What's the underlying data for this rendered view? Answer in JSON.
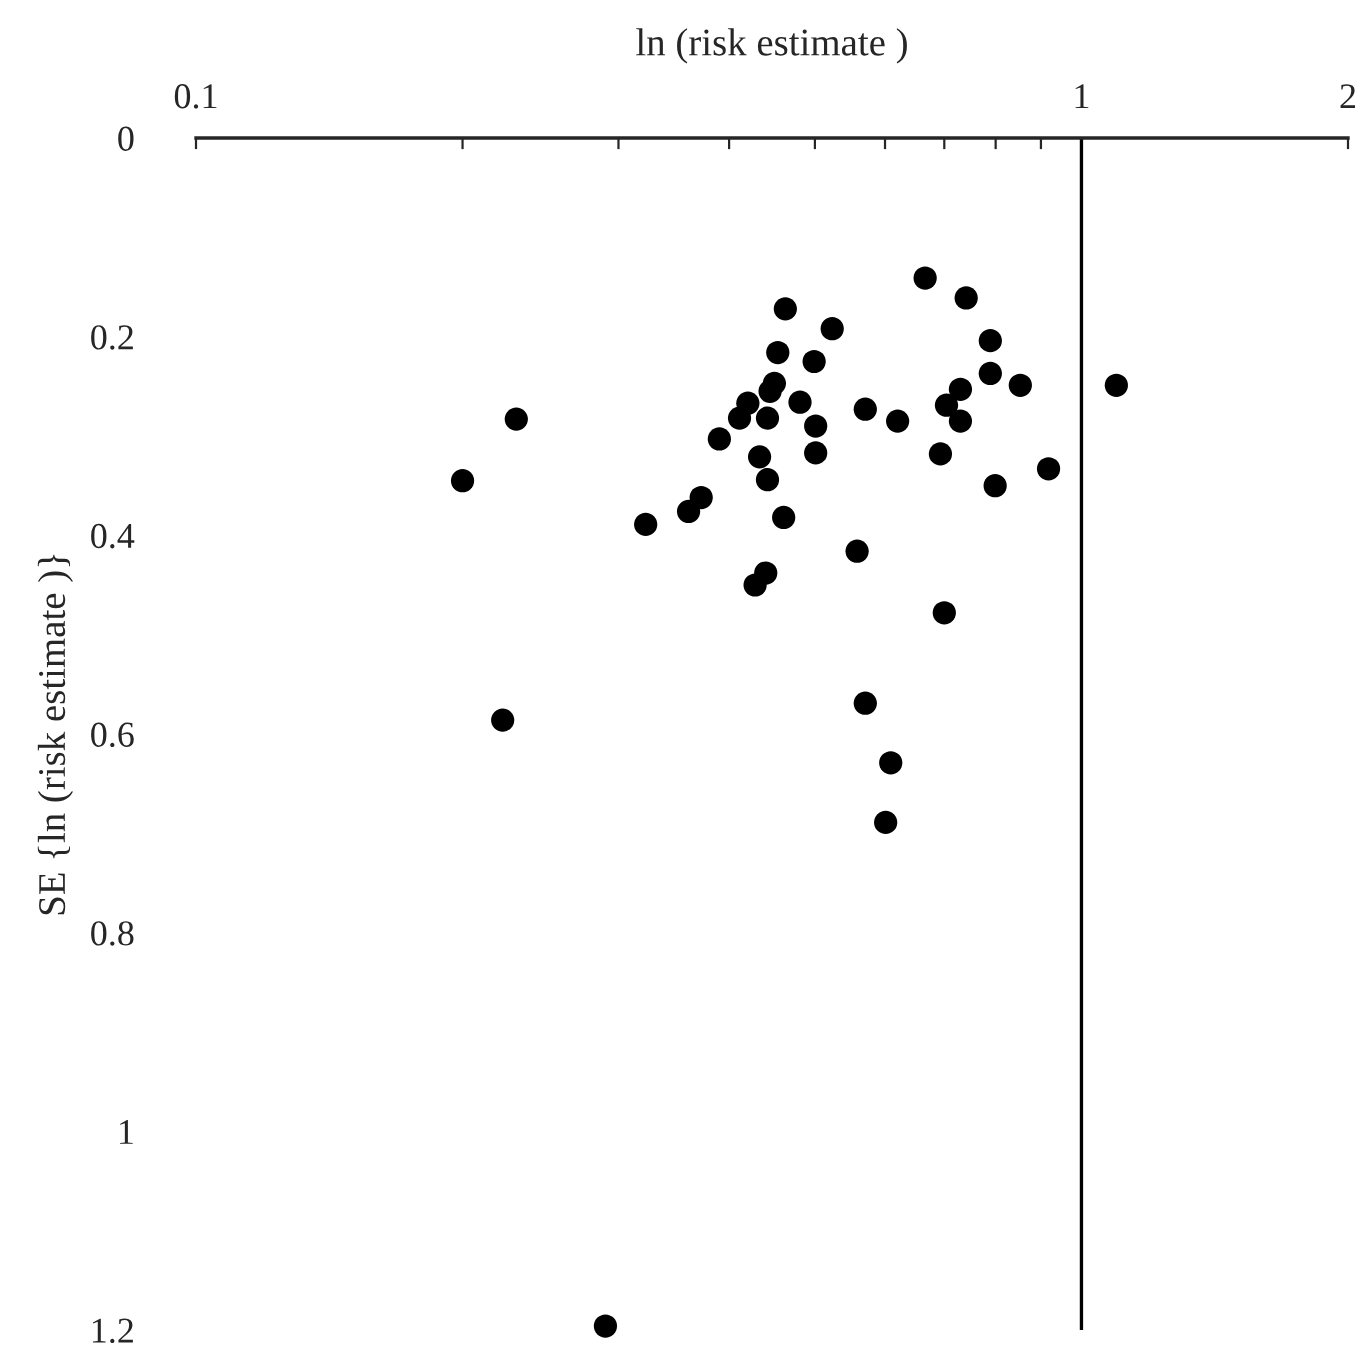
{
  "chart_data": {
    "type": "scatter",
    "xlabel": "ln (risk estimate )",
    "ylabel": "SE {ln (risk estimate )}",
    "log": "x",
    "marker": "circle",
    "grid": false,
    "legend": false,
    "xlim": [
      0.1,
      2
    ],
    "ylim": [
      1.2,
      0
    ],
    "xticks": [
      0.1,
      {
        "value": 0.2,
        "label": null
      },
      {
        "value": 0.3,
        "label": null
      },
      {
        "value": 0.4,
        "label": null
      },
      {
        "value": 0.5,
        "label": null
      },
      {
        "value": 0.6,
        "label": null
      },
      {
        "value": 0.7,
        "label": null
      },
      {
        "value": 0.8,
        "label": null
      },
      {
        "value": 0.9,
        "label": null
      },
      1,
      2
    ],
    "yticks": [
      0,
      0.2,
      0.4,
      0.6,
      0.8,
      1,
      1.2
    ],
    "ref_lines": [
      {
        "axis": "x",
        "value": 1,
        "color": "#000000"
      }
    ],
    "series": [
      {
        "color": "#000000",
        "x": [
          0.463,
          0.523,
          0.454,
          0.499,
          0.45,
          0.445,
          0.42,
          0.411,
          0.442,
          0.481,
          0.501,
          0.57,
          0.23,
          0.39,
          0.433,
          0.501,
          0.2,
          0.442,
          0.372,
          0.36,
          0.322,
          0.461,
          0.558,
          0.44,
          0.428,
          0.666,
          0.741,
          0.789,
          0.789,
          0.853,
          0.73,
          1.095,
          0.62,
          0.704,
          0.73,
          0.693,
          0.918,
          0.799,
          0.7,
          0.222,
          0.57,
          0.609,
          0.601,
          0.29
        ],
        "values": [
          0.172,
          0.192,
          0.216,
          0.225,
          0.247,
          0.255,
          0.267,
          0.282,
          0.282,
          0.266,
          0.29,
          0.273,
          0.283,
          0.303,
          0.321,
          0.317,
          0.345,
          0.344,
          0.362,
          0.376,
          0.389,
          0.382,
          0.416,
          0.438,
          0.45,
          0.141,
          0.161,
          0.204,
          0.237,
          0.249,
          0.253,
          0.249,
          0.285,
          0.269,
          0.285,
          0.318,
          0.333,
          0.35,
          0.478,
          0.586,
          0.569,
          0.629,
          0.689,
          1.196
        ]
      }
    ]
  }
}
